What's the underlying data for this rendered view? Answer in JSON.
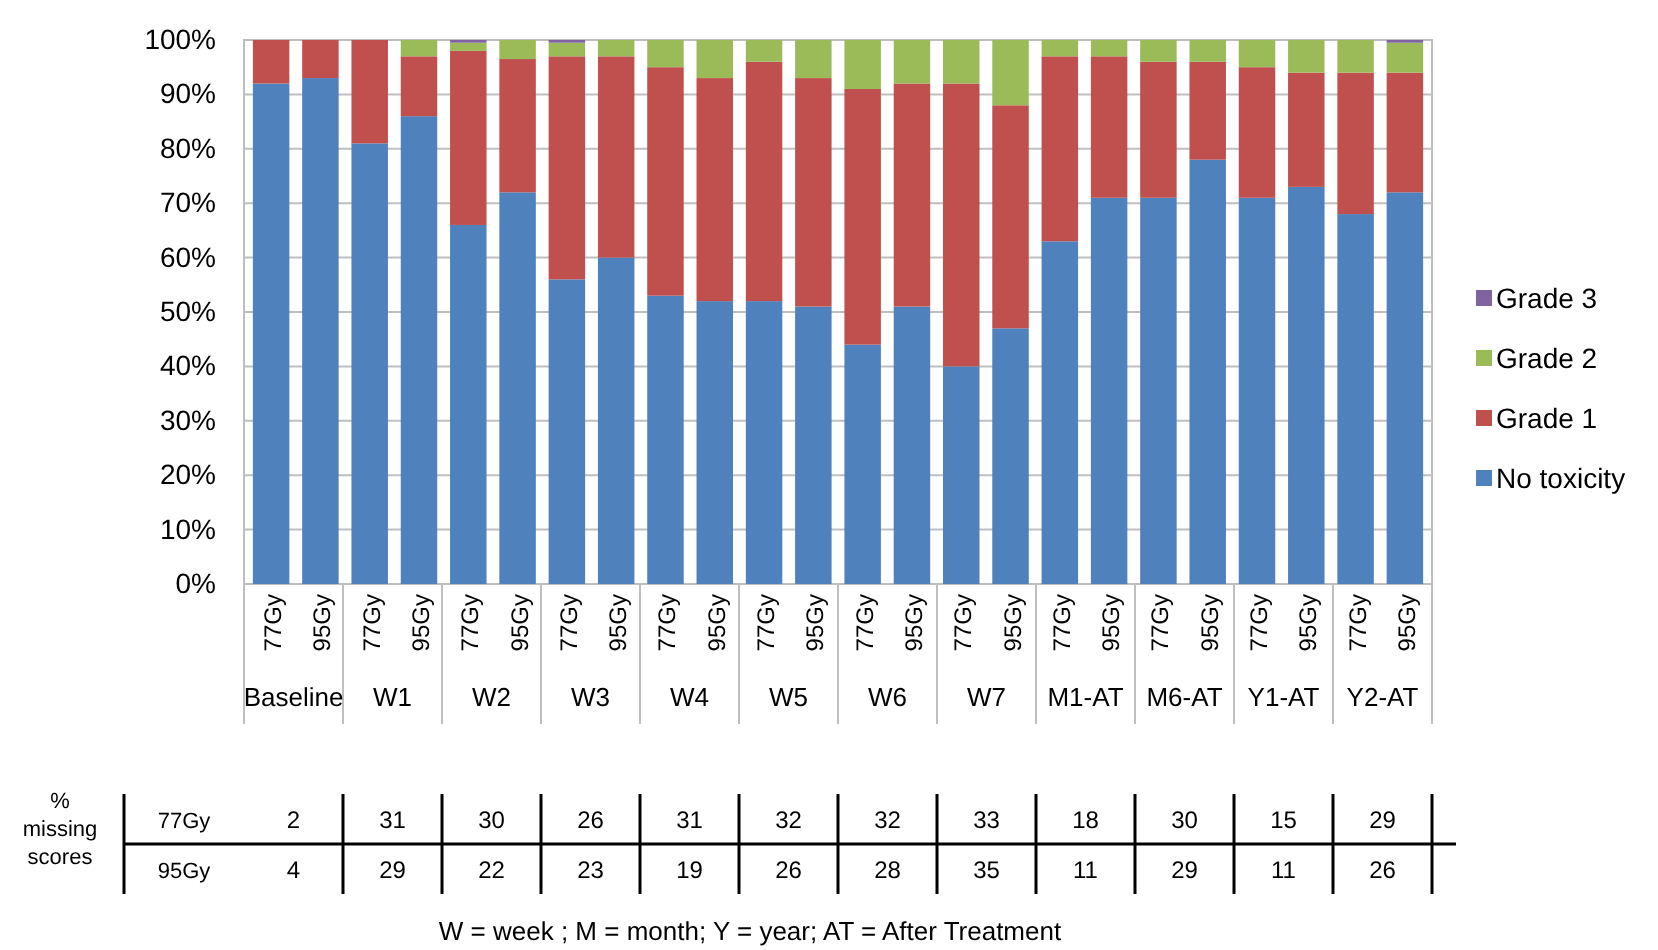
{
  "chart_data": [
    {
      "type": "bar",
      "stacked": true,
      "categories": [
        "77Gy",
        "95Gy",
        "77Gy",
        "95Gy",
        "77Gy",
        "95Gy",
        "77Gy",
        "95Gy",
        "77Gy",
        "95Gy",
        "77Gy",
        "95Gy",
        "77Gy",
        "95Gy",
        "77Gy",
        "95Gy",
        "77Gy",
        "95Gy",
        "77Gy",
        "95Gy",
        "77Gy",
        "95Gy",
        "77Gy",
        "95Gy"
      ],
      "series": [
        {
          "name": "No toxicity",
          "color": "#4f81bd",
          "values": [
            92,
            93,
            81,
            86,
            66,
            72,
            56,
            60,
            53,
            52,
            52,
            51,
            44,
            51,
            40,
            47,
            63,
            71,
            71,
            78,
            71,
            73,
            68,
            72
          ]
        },
        {
          "name": "Grade 1",
          "color": "#c0504d",
          "values": [
            8,
            7,
            19,
            11,
            32,
            24.5,
            41,
            37,
            42,
            41,
            44,
            42,
            47,
            41,
            52,
            41,
            34,
            26,
            25,
            18,
            24,
            21,
            26,
            22
          ]
        },
        {
          "name": "Grade 2",
          "color": "#9bbb59",
          "values": [
            0,
            0,
            0,
            3,
            1.5,
            3.5,
            2.5,
            3,
            5,
            7,
            4,
            7,
            9,
            8,
            8,
            12,
            3,
            3,
            4,
            4,
            5,
            6,
            6,
            5.5
          ]
        },
        {
          "name": "Grade 3",
          "color": "#8064a2",
          "values": [
            0,
            0,
            0,
            0,
            0.5,
            0,
            0.5,
            0,
            0,
            0,
            0,
            0,
            0,
            0,
            0,
            0,
            0,
            0,
            0,
            0,
            0,
            0,
            0,
            0.5
          ]
        }
      ],
      "ylim": [
        0,
        100
      ],
      "yticks": [
        {
          "value": 0,
          "label": "0%"
        },
        {
          "value": 10,
          "label": "10%"
        },
        {
          "value": 20,
          "label": "20%"
        },
        {
          "value": 30,
          "label": "30%"
        },
        {
          "value": 40,
          "label": "40%"
        },
        {
          "value": 50,
          "label": "50%"
        },
        {
          "value": 60,
          "label": "60%"
        },
        {
          "value": 70,
          "label": "70%"
        },
        {
          "value": 80,
          "label": "80%"
        },
        {
          "value": 90,
          "label": "90%"
        },
        {
          "value": 100,
          "label": "100%"
        }
      ],
      "grid": "y",
      "legend": "right",
      "annotations": [
        "Baseline",
        "W1",
        "W2",
        "W3",
        "W4",
        "W5",
        "W6",
        "W7",
        "M1-AT",
        "M6-AT",
        "Y1-AT",
        "Y2-AT"
      ]
    },
    {
      "type": "heatmap",
      "ylabel": "% missing scores",
      "categories": [
        null,
        null,
        null,
        null,
        null,
        null,
        null,
        null,
        null,
        null,
        null,
        null
      ],
      "y_categories": [
        "77Gy",
        "95Gy"
      ],
      "cells": [
        [
          2,
          31,
          30,
          26,
          31,
          32,
          32,
          33,
          18,
          30,
          15,
          29
        ],
        [
          4,
          29,
          22,
          23,
          19,
          26,
          28,
          35,
          11,
          29,
          11,
          26
        ]
      ],
      "data_labels": true,
      "annotations": [
        "W = week ; M = month; Y = year;  AT = After Treatment"
      ]
    }
  ]
}
